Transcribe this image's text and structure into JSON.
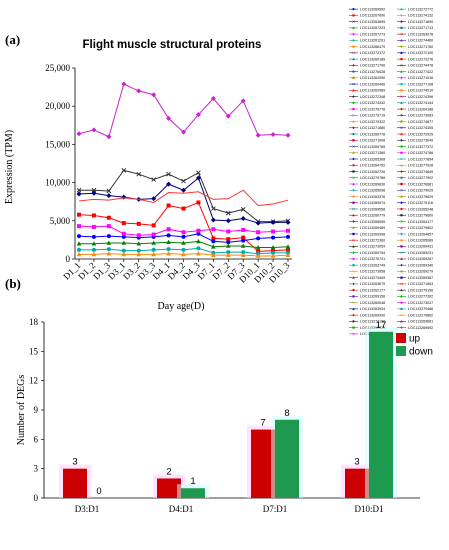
{
  "chart_data": [
    {
      "panel": "(a)",
      "type": "line",
      "title": "Flight muscle structural proteins",
      "xlabel": "Day age(D)",
      "ylabel": "Expression (TPM)",
      "ylim": [
        0,
        25000
      ],
      "yticks": [
        "0",
        "5,000",
        "10,000",
        "15,000",
        "20,000",
        "25,000"
      ],
      "categories": [
        "D1_1",
        "D1_2",
        "D1_3",
        "D3_1",
        "D3_2",
        "D3_3",
        "D4_1",
        "D4_2",
        "D4_3",
        "D7_1",
        "D7_2",
        "D7_3",
        "D10_1",
        "D10_2",
        "D10_3"
      ],
      "series": [
        {
          "color": "#cc22cc",
          "marker": "diamond",
          "values": [
            16400,
            16900,
            16000,
            22900,
            22000,
            21500,
            18400,
            16600,
            18900,
            21000,
            18700,
            20700,
            16200,
            16300,
            16200
          ]
        },
        {
          "color": "#333333",
          "marker": "x",
          "values": [
            9000,
            9000,
            8900,
            11600,
            11100,
            10400,
            11100,
            10200,
            11300,
            6600,
            6000,
            6500,
            4900,
            4900,
            5000
          ]
        },
        {
          "color": "#000080",
          "marker": "diamond",
          "values": [
            8500,
            8600,
            8300,
            8100,
            7800,
            7900,
            9800,
            9000,
            10600,
            5100,
            5000,
            5300,
            4700,
            4800,
            4800
          ]
        },
        {
          "color": "#ff3333",
          "marker": "none",
          "values": [
            7600,
            7800,
            7700,
            8000,
            7800,
            7400,
            8700,
            8600,
            8800,
            7800,
            7900,
            9000,
            7000,
            7200,
            7700
          ]
        },
        {
          "color": "#ff0000",
          "marker": "square",
          "values": [
            5800,
            5700,
            5400,
            4700,
            4600,
            4400,
            7000,
            6600,
            7400,
            2700,
            2600,
            2800,
            1000,
            1100,
            1200
          ]
        },
        {
          "color": "#0000ff",
          "marker": "circle",
          "values": [
            3000,
            2900,
            3000,
            2900,
            2800,
            2900,
            3100,
            2900,
            3300,
            2300,
            2200,
            2400,
            2700,
            2800,
            2900
          ]
        },
        {
          "color": "#008000",
          "marker": "triangle",
          "values": [
            2000,
            2000,
            2100,
            2100,
            2000,
            2100,
            2200,
            2100,
            2300,
            1600,
            1700,
            1700,
            1500,
            1500,
            1600
          ]
        },
        {
          "color": "#ff00ff",
          "marker": "square",
          "values": [
            4300,
            4200,
            4300,
            3300,
            3100,
            3200,
            3900,
            3500,
            3700,
            3900,
            3600,
            3800,
            3500,
            3600,
            3700
          ]
        },
        {
          "color": "#00aaaa",
          "marker": "circle",
          "values": [
            1200,
            1200,
            1300,
            1100,
            1100,
            1200,
            1300,
            1200,
            1400,
            800,
            900,
            900,
            700,
            800,
            800
          ]
        },
        {
          "color": "#ff8800",
          "marker": "triangle",
          "values": [
            600,
            600,
            700,
            600,
            600,
            600,
            700,
            600,
            700,
            500,
            500,
            500,
            400,
            400,
            500
          ]
        }
      ],
      "legend": [
        "LOC113269592",
        "LOC113267690",
        "LOC113263695",
        "LOC113267223",
        "LOC113267273",
        "LOC113261201",
        "LOC113266479",
        "LOC113272372",
        "LOC113260189",
        "LOC113271790",
        "LOC113276028",
        "LOC113262050",
        "LOC113260406",
        "LOC113262989",
        "LOC113272348",
        "LOC113274332",
        "LOC113276778",
        "LOC113273719",
        "LOC113279322",
        "LOC113271880",
        "LOC113260778",
        "LOC113271008",
        "LOC113269765",
        "LOC113271360",
        "LOC113265308",
        "LOC113264752",
        "LOC113262726",
        "LOC113279788",
        "LOC113269830",
        "LOC113265098",
        "LOC113263376",
        "LOC113269574",
        "LOC113269558",
        "LOC113260779",
        "LOC113265059",
        "LOC113269489",
        "LOC113269398",
        "LOC113272360",
        "LOC113273059",
        "LOC113269754",
        "LOC113276741",
        "LOC113263749",
        "LOC113273958",
        "LOC113273409",
        "LOC113263679",
        "LOC113262177",
        "LOC113269156",
        "LOC113260048",
        "LOC113263934",
        "LOC113269930",
        "LOC113274130",
        "LOC113267229",
        "LOC113271669",
        "LOC113272772",
        "LOC113274132",
        "LOC113271690",
        "LOC113271713",
        "LOC113263078",
        "LOC113274460",
        "LOC113271760",
        "LOC113272100",
        "LOC113272276",
        "LOC113274478",
        "LOC113277422",
        "LOC113271016",
        "LOC113277108",
        "LOC113274510",
        "LOC113274396",
        "LOC113274144",
        "LOC113264188",
        "LOC113273083",
        "LOC113274877",
        "LOC113274305",
        "LOC113272925",
        "LOC113273049",
        "LOC113277372",
        "LOC113274786",
        "LOC113277894",
        "LOC113277028",
        "LOC113274849",
        "LOC113277902",
        "LOC113276681",
        "LOC113279025",
        "LOC113279629",
        "LOC113279118",
        "LOC113265248",
        "LOC113279600",
        "LOC113264177",
        "LOC113279602",
        "LOC113264857",
        "LOC113265089",
        "LOC113269431",
        "LOC113269231",
        "LOC113269287",
        "LOC113269340",
        "LOC113269279",
        "LOC113269387",
        "LOC113271963",
        "LOC113279156",
        "LOC113277302",
        "LOC113273037",
        "LOC113279466",
        "LOC113279662",
        "LOC113269681",
        "LOC113269592"
      ]
    },
    {
      "panel": "(b)",
      "type": "bar",
      "xlabel": "",
      "ylabel": "Number of DEGs",
      "ylim": [
        0,
        18
      ],
      "yticks": [
        "0",
        "3",
        "6",
        "9",
        "12",
        "15",
        "18"
      ],
      "categories": [
        "D3:D1",
        "D4:D1",
        "D7:D1",
        "D10:D1"
      ],
      "series": [
        {
          "name": "up",
          "color": "#cc0000",
          "values": [
            3,
            2,
            7,
            3
          ]
        },
        {
          "name": "down",
          "color": "#1e9950",
          "values": [
            0,
            1,
            8,
            17
          ]
        }
      ]
    }
  ]
}
